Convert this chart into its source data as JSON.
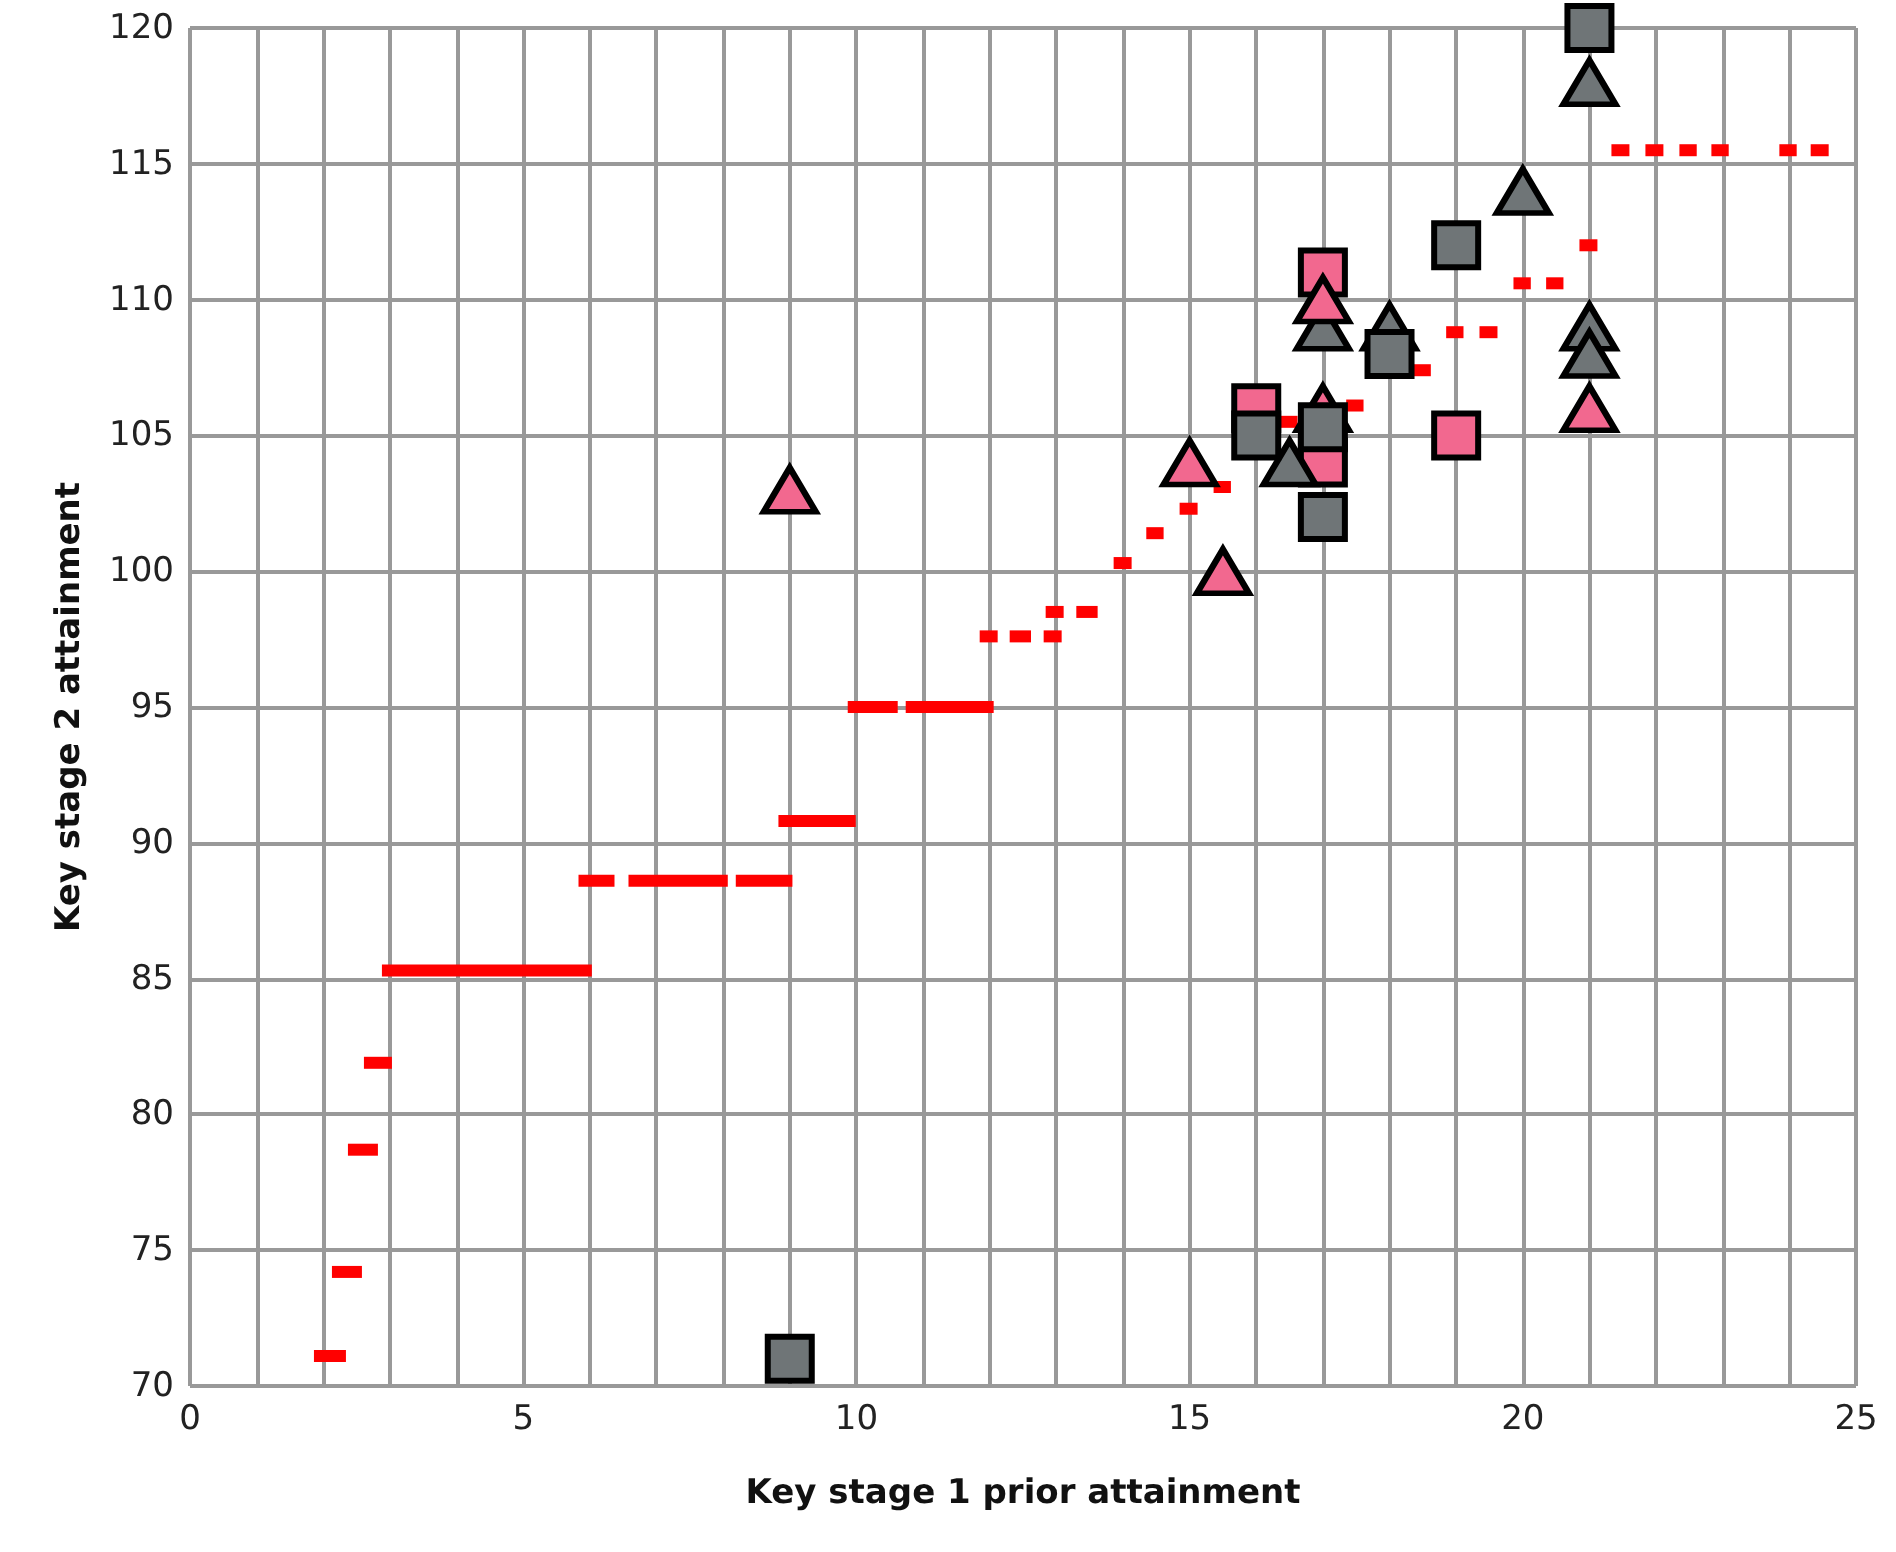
{
  "chart_data": {
    "type": "scatter",
    "xlabel": "Key stage 1 prior attainment",
    "ylabel": "Key stage 2 attainment",
    "xlim": [
      0,
      25
    ],
    "ylim": [
      70,
      120
    ],
    "xticks": [
      0,
      {
        "value": 1,
        "label": null
      },
      {
        "value": 2,
        "label": null
      },
      {
        "value": 3,
        "label": null
      },
      {
        "value": 4,
        "label": null
      },
      5,
      {
        "value": 6,
        "label": null
      },
      {
        "value": 7,
        "label": null
      },
      {
        "value": 8,
        "label": null
      },
      {
        "value": 9,
        "label": null
      },
      10,
      {
        "value": 11,
        "label": null
      },
      {
        "value": 12,
        "label": null
      },
      {
        "value": 13,
        "label": null
      },
      {
        "value": 14,
        "label": null
      },
      15,
      {
        "value": 16,
        "label": null
      },
      {
        "value": 17,
        "label": null
      },
      {
        "value": 18,
        "label": null
      },
      {
        "value": 19,
        "label": null
      },
      20,
      {
        "value": 21,
        "label": null
      },
      {
        "value": 22,
        "label": null
      },
      {
        "value": 23,
        "label": null
      },
      {
        "value": 24,
        "label": null
      },
      25
    ],
    "yticks": [
      70,
      75,
      80,
      85,
      90,
      95,
      100,
      105,
      110,
      115,
      120
    ],
    "grid": true,
    "line_style": "solid",
    "series": [
      {
        "type": "line",
        "color": "#ff0000",
        "marker": "none",
        "x": [
          1.86,
          2.34
        ],
        "values": [
          71.1,
          71.1
        ]
      },
      {
        "type": "line",
        "color": "#ff0000",
        "marker": "none",
        "x": [
          2.13,
          2.58
        ],
        "values": [
          74.2,
          74.2
        ]
      },
      {
        "type": "line",
        "color": "#ff0000",
        "marker": "none",
        "x": [
          2.37,
          2.82
        ],
        "values": [
          78.7,
          78.7
        ]
      },
      {
        "type": "line",
        "color": "#ff0000",
        "marker": "none",
        "x": [
          2.61,
          3.03
        ],
        "values": [
          81.9,
          81.9
        ]
      },
      {
        "type": "line",
        "color": "#ff0000",
        "marker": "none",
        "x": [
          2.88,
          6.03
        ],
        "values": [
          85.3,
          85.3
        ]
      },
      {
        "type": "line",
        "color": "#ff0000",
        "marker": "none",
        "x": [
          5.83,
          6.37
        ],
        "values": [
          88.6,
          88.6
        ]
      },
      {
        "type": "line",
        "color": "#ff0000",
        "marker": "none",
        "x": [
          6.58,
          8.07
        ],
        "values": [
          88.6,
          88.6
        ]
      },
      {
        "type": "line",
        "color": "#ff0000",
        "marker": "none",
        "x": [
          8.19,
          9.04
        ],
        "values": [
          88.6,
          88.6
        ]
      },
      {
        "type": "line",
        "color": "#ff0000",
        "marker": "none",
        "x": [
          8.83,
          9.99
        ],
        "values": [
          90.8,
          90.8
        ]
      },
      {
        "type": "line",
        "color": "#ff0000",
        "marker": "none",
        "x": [
          9.87,
          10.62
        ],
        "values": [
          95,
          95
        ]
      },
      {
        "type": "line",
        "color": "#ff0000",
        "marker": "none",
        "x": [
          10.74,
          12.06
        ],
        "values": [
          95,
          95
        ]
      },
      {
        "type": "line",
        "color": "#ff0000",
        "marker": "none",
        "x": [
          11.85,
          12.12
        ],
        "values": [
          97.6,
          97.6
        ]
      },
      {
        "type": "line",
        "color": "#ff0000",
        "marker": "none",
        "x": [
          12.3,
          12.62
        ],
        "values": [
          97.6,
          97.6
        ]
      },
      {
        "type": "line",
        "color": "#ff0000",
        "marker": "none",
        "x": [
          12.81,
          13.08
        ],
        "values": [
          97.6,
          97.6
        ]
      },
      {
        "type": "line",
        "color": "#ff0000",
        "marker": "none",
        "x": [
          12.84,
          13.11
        ],
        "values": [
          98.5,
          98.5
        ]
      },
      {
        "type": "line",
        "color": "#ff0000",
        "marker": "none",
        "x": [
          13.3,
          13.62
        ],
        "values": [
          98.5,
          98.5
        ]
      },
      {
        "type": "line",
        "color": "#ff0000",
        "marker": "none",
        "x": [
          13.86,
          14.13
        ],
        "values": [
          100.3,
          100.3
        ]
      },
      {
        "type": "line",
        "color": "#ff0000",
        "marker": "none",
        "x": [
          14.35,
          14.61
        ],
        "values": [
          101.4,
          101.4
        ]
      },
      {
        "type": "line",
        "color": "#ff0000",
        "marker": "none",
        "x": [
          14.85,
          15.12
        ],
        "values": [
          102.3,
          102.3
        ]
      },
      {
        "type": "line",
        "color": "#ff0000",
        "marker": "none",
        "x": [
          15.36,
          15.62
        ],
        "values": [
          103.1,
          103.1
        ]
      },
      {
        "type": "line",
        "color": "#ff0000",
        "marker": "none",
        "x": [
          16.35,
          16.62
        ],
        "values": [
          105.5,
          105.5
        ]
      },
      {
        "type": "line",
        "color": "#ff0000",
        "marker": "none",
        "x": [
          17.35,
          17.61
        ],
        "values": [
          106.1,
          106.1
        ]
      },
      {
        "type": "line",
        "color": "#ff0000",
        "marker": "none",
        "x": [
          18.36,
          18.62
        ],
        "values": [
          107.4,
          107.4
        ]
      },
      {
        "type": "line",
        "color": "#ff0000",
        "marker": "none",
        "x": [
          18.85,
          19.11
        ],
        "values": [
          108.8,
          108.8
        ]
      },
      {
        "type": "line",
        "color": "#ff0000",
        "marker": "none",
        "x": [
          19.35,
          19.62
        ],
        "values": [
          108.8,
          108.8
        ]
      },
      {
        "type": "line",
        "color": "#ff0000",
        "marker": "none",
        "x": [
          19.86,
          20.12
        ],
        "values": [
          110.6,
          110.6
        ]
      },
      {
        "type": "line",
        "color": "#ff0000",
        "marker": "none",
        "x": [
          20.35,
          20.61
        ],
        "values": [
          110.6,
          110.6
        ]
      },
      {
        "type": "line",
        "color": "#ff0000",
        "marker": "none",
        "x": [
          20.85,
          21.12
        ],
        "values": [
          112,
          112
        ]
      },
      {
        "type": "line",
        "color": "#ff0000",
        "marker": "none",
        "x": [
          21.33,
          21.6
        ],
        "values": [
          115.5,
          115.5
        ]
      },
      {
        "type": "line",
        "color": "#ff0000",
        "marker": "none",
        "x": [
          21.84,
          22.11
        ],
        "values": [
          115.5,
          115.5
        ]
      },
      {
        "type": "line",
        "color": "#ff0000",
        "marker": "none",
        "x": [
          22.35,
          22.61
        ],
        "values": [
          115.5,
          115.5
        ]
      },
      {
        "type": "line",
        "color": "#ff0000",
        "marker": "none",
        "x": [
          22.83,
          23.09
        ],
        "values": [
          115.5,
          115.5
        ]
      },
      {
        "type": "line",
        "color": "#ff0000",
        "marker": "none",
        "x": [
          23.85,
          24.11
        ],
        "values": [
          115.5,
          115.5
        ]
      },
      {
        "type": "line",
        "color": "#ff0000",
        "marker": "none",
        "x": [
          24.32,
          24.59
        ],
        "values": [
          115.5,
          115.5
        ]
      },
      {
        "color": "#f2688f",
        "marker": "square",
        "x": [
          17,
          16,
          17,
          19
        ],
        "values": [
          111,
          106,
          104,
          105
        ]
      },
      {
        "color": "#6f7577",
        "marker": "triangle",
        "x": [
          21,
          20,
          21,
          21,
          17,
          18,
          16.5
        ],
        "values": [
          118,
          114,
          109,
          108,
          109,
          109,
          104
        ]
      },
      {
        "color": "#f2688f",
        "marker": "triangle",
        "x": [
          17,
          15,
          17,
          21,
          9,
          15.5
        ],
        "values": [
          110,
          104,
          106,
          106,
          103,
          100
        ]
      },
      {
        "color": "#6f7577",
        "marker": "square",
        "x": [
          21,
          19,
          18,
          16,
          17,
          17,
          9
        ],
        "values": [
          120,
          112,
          108,
          105,
          105.3,
          102,
          71
        ]
      }
    ]
  }
}
